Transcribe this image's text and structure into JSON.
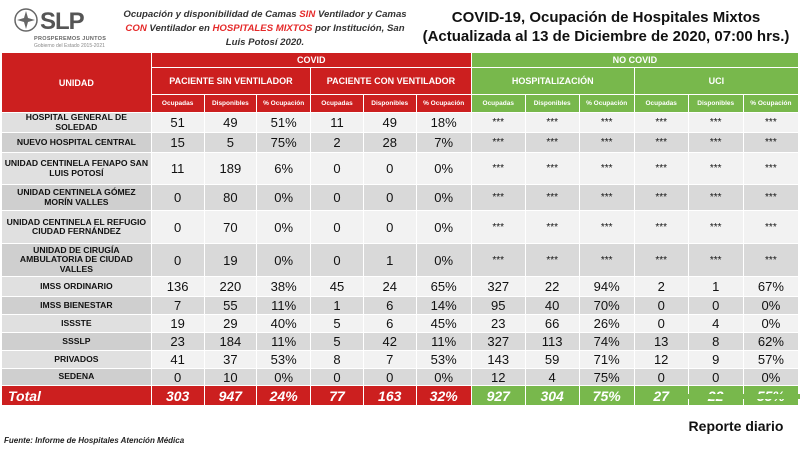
{
  "logo": {
    "brand": "SLP",
    "tagline": "PROSPEREMOS JUNTOS",
    "government": "Gobierno del Estado 2015-2021"
  },
  "subtitle": {
    "p1": "Ocupación y disponibilidad de Camas ",
    "sin": "SIN",
    "p2": " Ventilador y Camas ",
    "con": "CON",
    "p3": " Ventilador en ",
    "mixtos": "HOSPITALES MIXTOS",
    "p4": " por Institución, San Luis Potosí 2020."
  },
  "title": {
    "line1": "COVID-19, Ocupación de Hospitales Mixtos",
    "line2": "(Actualizada al 13 de Diciembre de 2020, 07:00 hrs.)"
  },
  "table": {
    "unidad_label": "UNIDAD",
    "covid_label": "COVID",
    "nocovid_label": "NO COVID",
    "groups": [
      "PACIENTE SIN VENTILADOR",
      "PACIENTE CON VENTILADOR",
      "HOSPITALIZACIÓN",
      "UCI"
    ],
    "sub_headers": [
      "Ocupadas",
      "Disponibles",
      "% Ocupación"
    ],
    "rows": [
      {
        "name": "HOSPITAL GENERAL DE SOLEDAD",
        "values": [
          "51",
          "49",
          "51%",
          "11",
          "49",
          "18%",
          "***",
          "***",
          "***",
          "***",
          "***",
          "***"
        ]
      },
      {
        "name": "NUEVO HOSPITAL CENTRAL",
        "values": [
          "15",
          "5",
          "75%",
          "2",
          "28",
          "7%",
          "***",
          "***",
          "***",
          "***",
          "***",
          "***"
        ]
      },
      {
        "name": "UNIDAD CENTINELA FENAPO SAN LUIS POTOSÍ",
        "values": [
          "11",
          "189",
          "6%",
          "0",
          "0",
          "0%",
          "***",
          "***",
          "***",
          "***",
          "***",
          "***"
        ]
      },
      {
        "name": "UNIDAD CENTINELA GÓMEZ MORÍN VALLES",
        "values": [
          "0",
          "80",
          "0%",
          "0",
          "0",
          "0%",
          "***",
          "***",
          "***",
          "***",
          "***",
          "***"
        ]
      },
      {
        "name": "UNIDAD CENTINELA EL REFUGIO CIUDAD FERNÁNDEZ",
        "values": [
          "0",
          "70",
          "0%",
          "0",
          "0",
          "0%",
          "***",
          "***",
          "***",
          "***",
          "***",
          "***"
        ]
      },
      {
        "name": "UNIDAD DE CIRUGÍA AMBULATORIA DE CIUDAD VALLES",
        "values": [
          "0",
          "19",
          "0%",
          "0",
          "1",
          "0%",
          "***",
          "***",
          "***",
          "***",
          "***",
          "***"
        ]
      },
      {
        "name": "IMSS ORDINARIO",
        "values": [
          "136",
          "220",
          "38%",
          "45",
          "24",
          "65%",
          "327",
          "22",
          "94%",
          "2",
          "1",
          "67%"
        ]
      },
      {
        "name": "IMSS BIENESTAR",
        "values": [
          "7",
          "55",
          "11%",
          "1",
          "6",
          "14%",
          "95",
          "40",
          "70%",
          "0",
          "0",
          "0%"
        ]
      },
      {
        "name": "ISSSTE",
        "values": [
          "19",
          "29",
          "40%",
          "5",
          "6",
          "45%",
          "23",
          "66",
          "26%",
          "0",
          "4",
          "0%"
        ]
      },
      {
        "name": "SSSLP",
        "values": [
          "23",
          "184",
          "11%",
          "5",
          "42",
          "11%",
          "327",
          "113",
          "74%",
          "13",
          "8",
          "62%"
        ]
      },
      {
        "name": "PRIVADOS",
        "values": [
          "41",
          "37",
          "53%",
          "8",
          "7",
          "53%",
          "143",
          "59",
          "71%",
          "12",
          "9",
          "57%"
        ]
      },
      {
        "name": "SEDENA",
        "values": [
          "0",
          "10",
          "0%",
          "0",
          "0",
          "0%",
          "12",
          "4",
          "75%",
          "0",
          "0",
          "0%"
        ]
      }
    ],
    "total": {
      "label": "Total",
      "values": [
        "303",
        "947",
        "24%",
        "77",
        "163",
        "32%",
        "927",
        "304",
        "75%",
        "27",
        "22",
        "55%"
      ]
    }
  },
  "source": "Fuente: Informe de Hospitales Atención Médica",
  "report_label": "Reporte diario",
  "colors": {
    "covid_red": "#cc1f1f",
    "nocovid_green": "#78b84c",
    "emphasis_red": "#e52a2a"
  }
}
